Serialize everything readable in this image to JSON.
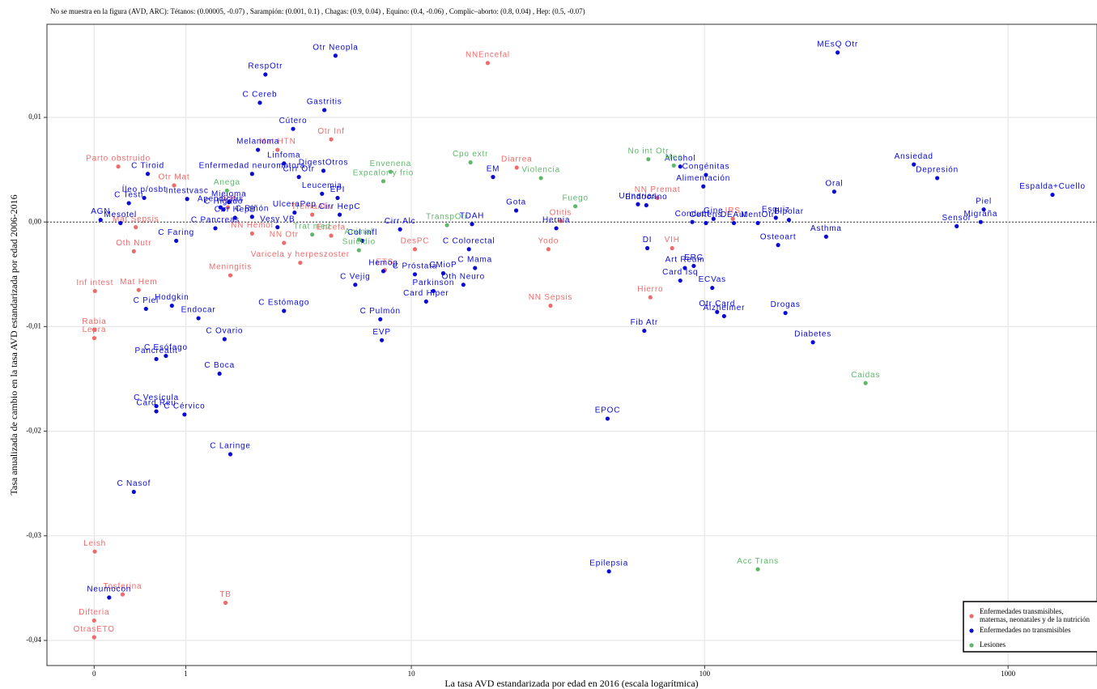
{
  "chart_data": {
    "type": "scatter",
    "note": "No se muestra en la figura (AVD, ARC):  Tétanos: (0.00005, -0.07) ,  Sarampión: (0.001, 0.1) ,  Chagas: (0.9, 0.04) ,  Equino: (0.4, -0.06) ,  Complic–aborto: (0.8, 0.04) ,  Hep: (0.5, -0.07)",
    "x_label": "La tasa AVD estandarizada por edad en 2016 (escala logarítmica)",
    "y_label": "Tasa anualizada de cambio en la tasa AVD estandarizada por edad 2006-2016",
    "xscale": "log1p",
    "xlim": [
      -0.3,
      1960
    ],
    "xticks": [
      0,
      1,
      10,
      100,
      1000
    ],
    "ylim": [
      -0.0424,
      0.0189
    ],
    "yticks": [
      {
        "value": 0.01,
        "label": "0,01"
      },
      {
        "value": 0,
        "label": "0,00"
      },
      {
        "value": -0.01,
        "label": "-0,01"
      },
      {
        "value": -0.02,
        "label": "-0,02"
      },
      {
        "value": -0.03,
        "label": "-0,03"
      },
      {
        "value": -0.04,
        "label": "-0,04"
      }
    ],
    "hline": 0,
    "grid": true,
    "legend": "bottom-right",
    "series": [
      {
        "name": "Enfermedades transmisibles, maternas, neonatales y de la nutrición",
        "color": "#ef6b6b",
        "labels": [
          "NNEncefal",
          "Otr Inf",
          "Mat HTN",
          "Diarrea",
          "NN Premat",
          "IRS",
          "Parto obstruido",
          "Otr Mat",
          "IRB",
          "TremaAliv",
          "Encefa",
          "Mat Sepsis",
          "Oth Nutr",
          "NN Hemol",
          "NN Otr",
          "Varicela y herpeszoster",
          "Meningitis",
          "Otitis",
          "Yodo",
          "DesPC",
          "ETS",
          "VIH",
          "NN Sepsis",
          "Hierro",
          "Inf intest",
          "Mat Hem",
          "Rabia",
          "Lepra",
          "Leish",
          "Tosferina",
          "TB",
          "Difteria",
          "OtrasETO"
        ],
        "x": [
          18.6,
          5.0,
          3.0,
          23.4,
          69.7,
          124,
          0.2,
          0.83,
          1.75,
          4.2,
          5.0,
          0.37,
          0.35,
          2.3,
          3.2,
          3.75,
          1.8,
          33,
          30,
          10.3,
          8,
          78,
          30.5,
          66,
          0.006,
          0.4,
          0.001,
          0.001,
          0.005,
          0.24,
          1.7,
          0.0,
          0.0
        ],
        "values": [
          0.0152,
          0.0079,
          0.0069,
          0.0052,
          0.0023,
          0.0003,
          0.0053,
          0.0035,
          0.0014,
          0.0007,
          -0.0013,
          -0.0005,
          -0.0028,
          -0.0011,
          -0.002,
          -0.0039,
          -0.0051,
          0.0001,
          -0.0026,
          -0.0026,
          -0.0046,
          -0.0025,
          -0.008,
          -0.0072,
          -0.0066,
          -0.0065,
          -0.0103,
          -0.0111,
          -0.0315,
          -0.0356,
          -0.0364,
          -0.0381,
          -0.0397
        ]
      },
      {
        "name": "Enfermedades no transmisibles",
        "color": "#0a0ad6",
        "labels": [
          "Otr Neopla",
          "RespOtr",
          "C Cereb",
          "Gastritis",
          "Cútero",
          "Melanoma",
          "Linfoma",
          "Enfermedad neuromotora",
          "Cirr Otr",
          "DigestOtros",
          "C Tiroid",
          "Mieloma",
          "C Higado",
          "Íleo p/osbt",
          "C Testi",
          "Intestvasc",
          "Apendicitis",
          "Mesotel",
          "AGN",
          "C Riñón",
          "Cirr HepB",
          "C Pancreas",
          "C Faring",
          "UlceraPep",
          "Leucemia",
          "EPI",
          "Cirr HepC",
          "Vesy VB",
          "Col infl",
          "Cirr Alc",
          "TDAH",
          "C Colorectal",
          "C Mama",
          "CMioP",
          "C Próstata",
          "Hemog",
          "C Vejig",
          "Oth Neuro",
          "Parkinson",
          "Card Hiper",
          "C Pulmón",
          "EVP",
          "EM",
          "Gota",
          "Hernia",
          "Hodgkin",
          "C Piel",
          "Endocar",
          "C Estómago",
          "C Ovario",
          "C Esófago",
          "Pancreatit",
          "C Boca",
          "C Vesícula",
          "Card Reu",
          "C Cérvico",
          "C Laringe",
          "C Nasof",
          "Neumocon",
          "EPOC",
          "Epilepsia",
          "MEsQ Otr",
          "Alcohol",
          "Congénitas",
          "Alimentación",
          "Urinarias",
          "Endocrino",
          "Conduct",
          "Gine",
          "Ceftens",
          "DEAut",
          "Esquiz",
          "MentOtr",
          "Bipolar",
          "Asthma",
          "Osteoart",
          "DI",
          "ERC",
          "Art Reum",
          "Card Isq",
          "ECVas",
          "Otr Card",
          "Alzheimer",
          "Drogas",
          "Fib Atr",
          "Diabetes",
          "Oral",
          "Ansiedad",
          "Depresión",
          "Piel",
          "Espalda+Cuello",
          "Migraña",
          "Sensor"
        ],
        "x": [
          5.2,
          2.65,
          2.5,
          4.7,
          3.5,
          2.45,
          3.2,
          2.3,
          3.7,
          4.66,
          0.5,
          1.77,
          1.66,
          0.46,
          0.3,
          1.02,
          1.6,
          0.22,
          0.05,
          2.3,
          1.9,
          1.5,
          0.86,
          3.55,
          4.6,
          5.3,
          5.4,
          3.0,
          6.6,
          9.1,
          16.4,
          16,
          16.8,
          13,
          10.3,
          7.9,
          6.2,
          15.3,
          12,
          11.3,
          7.7,
          7.8,
          19.4,
          23.3,
          31.9,
          0.8,
          0.48,
          1.2,
          3.2,
          1.68,
          0.72,
          0.6,
          1.58,
          0.6,
          0.6,
          0.98,
          1.8,
          0.35,
          0.12,
          47.5,
          48,
          275,
          83,
          101,
          99,
          60,
          64,
          91,
          107,
          101,
          125,
          172,
          150,
          190,
          252,
          175,
          64.5,
          92,
          86,
          83,
          106,
          110,
          116,
          185,
          63,
          228,
          268,
          490,
          585,
          832,
          1400,
          813,
          678
        ],
        "values": [
          0.0159,
          0.0141,
          0.0114,
          0.0107,
          0.0089,
          0.0069,
          0.0056,
          0.0046,
          0.0043,
          0.0049,
          0.0046,
          0.0019,
          0.0012,
          0.0023,
          0.0018,
          0.0022,
          0.0014,
          -0.0001,
          0.0002,
          0.0005,
          0.0004,
          -0.0006,
          -0.0018,
          0.0009,
          0.0027,
          0.0023,
          0.0007,
          -0.0005,
          -0.0018,
          -0.0007,
          -0.0002,
          -0.0026,
          -0.0044,
          -0.0049,
          -0.005,
          -0.0047,
          -0.006,
          -0.006,
          -0.0066,
          -0.0076,
          -0.0093,
          -0.0113,
          0.0043,
          0.0011,
          -0.0006,
          -0.008,
          -0.0083,
          -0.0092,
          -0.0085,
          -0.0112,
          -0.0128,
          -0.0131,
          -0.0145,
          -0.0176,
          -0.0181,
          -0.0184,
          -0.0222,
          -0.0258,
          -0.0359,
          -0.0188,
          -0.0334,
          0.0162,
          0.0053,
          0.0045,
          0.0034,
          0.0017,
          0.0016,
          0.0,
          0.0003,
          -0.0001,
          -0.0001,
          0.0004,
          -0.0001,
          0.0002,
          -0.0014,
          -0.0022,
          -0.0025,
          -0.0042,
          -0.0044,
          -0.0056,
          -0.0063,
          -0.0086,
          -0.009,
          -0.0087,
          -0.0104,
          -0.0115,
          0.0029,
          0.0055,
          0.0042,
          0.0012,
          0.0026,
          0.0,
          -0.0004
        ]
      },
      {
        "name": "Lesiones",
        "color": "#5fb86a",
        "labels": [
          "Anega",
          "Envenena",
          "Cpo extr",
          "Expcalor y frio",
          "Violencia",
          "No int Otr",
          "Mec",
          "Fuego",
          "TranspOtr",
          "Animal",
          "Suicidio",
          "Trat med",
          "Caidas",
          "Acc Trans"
        ],
        "x": [
          1.73,
          8.4,
          16.2,
          7.9,
          28.3,
          65,
          79,
          37,
          13.4,
          6.4,
          6.4,
          4.2,
          340,
          150
        ],
        "values": [
          0.003,
          0.0048,
          0.0057,
          0.0039,
          0.0042,
          0.006,
          0.0054,
          0.0015,
          -0.0003,
          -0.0017,
          -0.0027,
          -0.0012,
          -0.0154,
          -0.0332
        ]
      }
    ]
  }
}
